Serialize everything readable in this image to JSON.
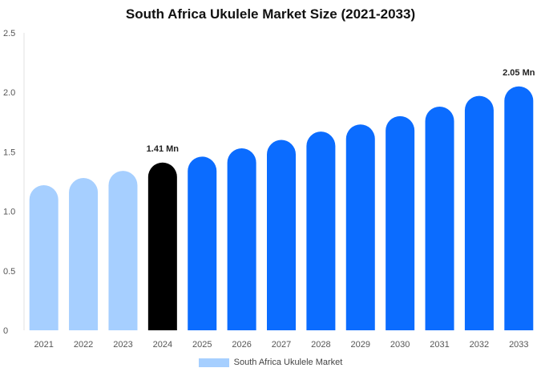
{
  "chart_data": {
    "type": "bar",
    "title": "South Africa Ukulele Market Size (2021-2033)",
    "categories": [
      "2021",
      "2022",
      "2023",
      "2024",
      "2025",
      "2026",
      "2027",
      "2028",
      "2029",
      "2030",
      "2031",
      "2032",
      "2033"
    ],
    "values": [
      1.22,
      1.28,
      1.34,
      1.41,
      1.46,
      1.53,
      1.6,
      1.67,
      1.73,
      1.8,
      1.88,
      1.97,
      2.05
    ],
    "series_name": "South Africa Ukulele Market",
    "ylim": [
      0,
      2.5
    ],
    "yticks": [
      "0",
      "0.5",
      "1.0",
      "1.5",
      "2.0",
      "2.5"
    ],
    "data_labels": [
      {
        "index": 3,
        "text": "1.41 Mn"
      },
      {
        "index": 12,
        "text": "2.05 Mn"
      }
    ],
    "colors": {
      "historical": "#a6cfff",
      "current": "#000000",
      "forecast": "#0b6cff",
      "grid": "#e5e5e5",
      "axis_text": "#555555"
    },
    "historical_count": 3,
    "current_index": 3,
    "legend_position": "bottom-center",
    "grid": false
  }
}
